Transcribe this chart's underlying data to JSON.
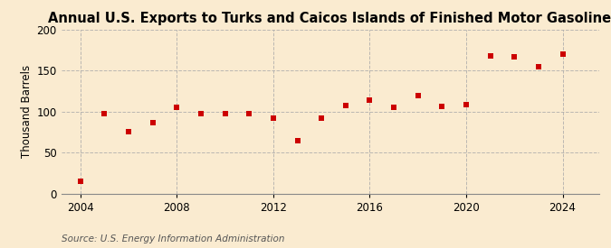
{
  "title": "Annual U.S. Exports to Turks and Caicos Islands of Finished Motor Gasoline",
  "ylabel": "Thousand Barrels",
  "source": "Source: U.S. Energy Information Administration",
  "background_color": "#faebd0",
  "marker_color": "#cc0000",
  "years": [
    2004,
    2005,
    2006,
    2007,
    2008,
    2009,
    2010,
    2011,
    2012,
    2013,
    2014,
    2015,
    2016,
    2017,
    2018,
    2019,
    2020,
    2021,
    2022,
    2023,
    2024
  ],
  "values": [
    15,
    97,
    76,
    86,
    105,
    98,
    98,
    98,
    92,
    65,
    92,
    107,
    114,
    105,
    120,
    106,
    109,
    168,
    167,
    155,
    170
  ],
  "xlim": [
    2003.2,
    2025.5
  ],
  "ylim": [
    0,
    200
  ],
  "yticks": [
    0,
    50,
    100,
    150,
    200
  ],
  "xticks": [
    2004,
    2008,
    2012,
    2016,
    2020,
    2024
  ],
  "grid_color": "#aaaaaa",
  "grid_linestyle": "--",
  "title_fontsize": 10.5,
  "label_fontsize": 8.5,
  "tick_fontsize": 8.5,
  "source_fontsize": 7.5
}
